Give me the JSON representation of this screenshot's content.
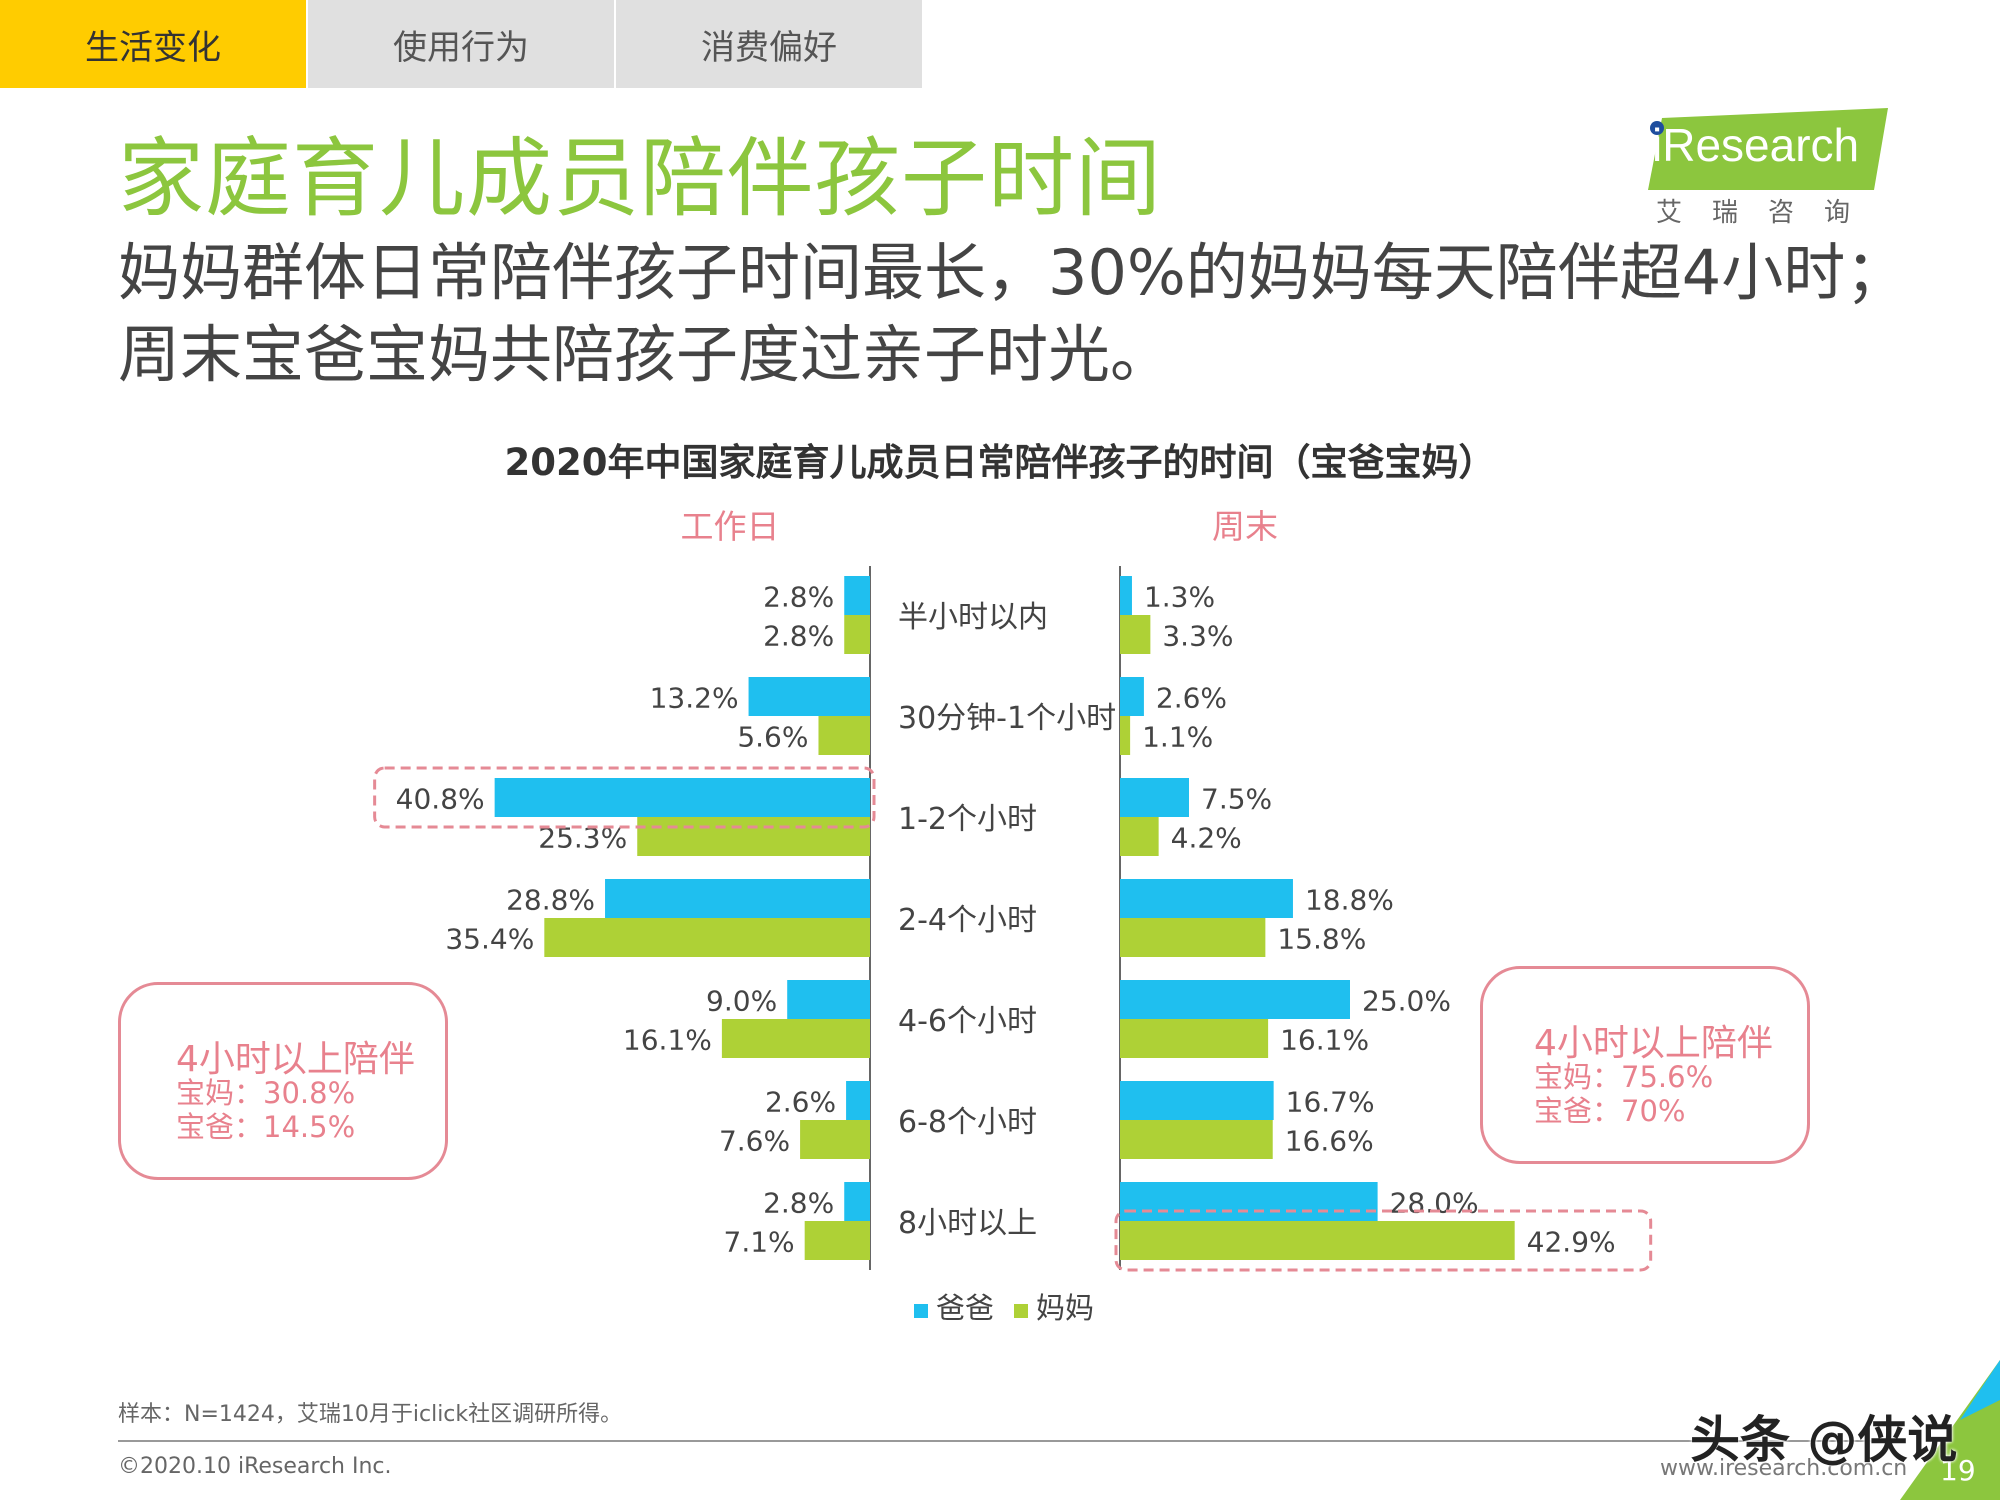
{
  "tabs": [
    {
      "label": "生活变化",
      "active": true
    },
    {
      "label": "使用行为",
      "active": false
    },
    {
      "label": "消费偏好",
      "active": false
    }
  ],
  "header": {
    "title": "家庭育儿成员陪伴孩子时间",
    "subtitle": "妈妈群体日常陪伴孩子时间最长，30%的妈妈每天陪伴超4小时；周末宝爸宝妈共陪孩子度过亲子时光。"
  },
  "logo": {
    "text": "iResearch",
    "subtext": "艾瑞咨询"
  },
  "chart_data": {
    "type": "bar",
    "orientation": "horizontal-butterfly",
    "title": "2020年中国家庭育儿成员日常陪伴孩子的时间（宝爸宝妈）",
    "panels": [
      "工作日",
      "周末"
    ],
    "categories": [
      "半小时以内",
      "30分钟-1个小时",
      "1-2个小时",
      "2-4个小时",
      "4-6个小时",
      "6-8个小时",
      "8小时以上"
    ],
    "value_suffix": "%",
    "series": [
      {
        "name": "爸爸",
        "color": "#1fbfef",
        "workday": [
          2.8,
          13.2,
          40.8,
          28.8,
          9.0,
          2.6,
          2.8
        ],
        "weekend": [
          1.3,
          2.6,
          7.5,
          18.8,
          25.0,
          16.7,
          28.0
        ]
      },
      {
        "name": "妈妈",
        "color": "#aed136",
        "workday": [
          2.8,
          5.6,
          25.3,
          35.4,
          16.1,
          7.6,
          7.1
        ],
        "weekend": [
          3.3,
          1.1,
          4.2,
          15.8,
          16.1,
          16.6,
          42.9
        ]
      }
    ],
    "highlights": [
      {
        "panel": "工作日",
        "category": "1-2个小时",
        "series": "爸爸"
      },
      {
        "panel": "周末",
        "category": "8小时以上",
        "series": "妈妈"
      }
    ],
    "legend": "bottom-center"
  },
  "callouts": {
    "left": {
      "head": "4小时以上陪伴",
      "lines": [
        "宝妈：30.8%",
        "宝爸：14.5%"
      ]
    },
    "right": {
      "head": "4小时以上陪伴",
      "lines": [
        "宝妈：75.6%",
        "宝爸：70%"
      ]
    }
  },
  "footer": {
    "note": "样本：N=1424，艾瑞10月于iclick社区调研所得。",
    "copyright": "©2020.10 iResearch Inc.",
    "site": "www.iresearch.com.cn",
    "page": "19",
    "watermark": "头条 @侠说"
  },
  "colors": {
    "tab_active": "#ffcc00",
    "title": "#8cc63e",
    "highlight": "#e58a95",
    "logo": "#8cc63e"
  }
}
